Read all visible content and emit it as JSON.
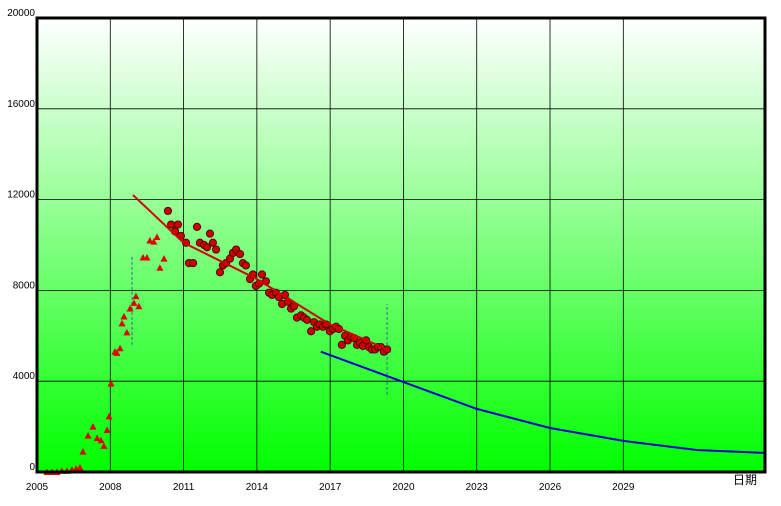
{
  "chart_data": {
    "type": "scatter",
    "xlabel": "日期",
    "xlim": [
      2005,
      2034.8
    ],
    "ylim": [
      0,
      20000
    ],
    "xticks": [
      2005,
      2008,
      2011,
      2014,
      2017,
      2020,
      2023,
      2026,
      2029
    ],
    "yticks": [
      0,
      4000,
      8000,
      12000,
      16000,
      20000
    ],
    "grid": true,
    "background": [
      "#ffffff",
      "#00ff00"
    ],
    "series": [
      {
        "marker": "triangle",
        "color": "#e00000",
        "x": [
          2005.41,
          2005.61,
          2005.82,
          2006.02,
          2006.23,
          2006.43,
          2006.6,
          2006.76,
          2006.88,
          2007.09,
          2007.29,
          2007.46,
          2007.62,
          2007.74,
          2007.87,
          2007.95,
          2008.03,
          2008.19,
          2008.27,
          2008.4,
          2008.48,
          2008.56,
          2008.68,
          2008.81,
          2008.97,
          2009.05,
          2009.17,
          2009.34,
          2009.5,
          2009.62,
          2009.78,
          2009.91,
          2010.03,
          2010.2
        ],
        "values": [
          0,
          0,
          0,
          50,
          50,
          100,
          150,
          200,
          900,
          1600,
          2000,
          1500,
          1400,
          1150,
          1850,
          2450,
          3900,
          5300,
          5250,
          5450,
          6550,
          6850,
          6150,
          7200,
          7450,
          7750,
          7300,
          9450,
          9450,
          10200,
          10150,
          10350,
          9000,
          9400
        ]
      },
      {
        "marker": "circle",
        "color": "#cc0000",
        "x": [
          2010.36,
          2010.49,
          2010.65,
          2010.77,
          2010.89,
          2011.1,
          2011.22,
          2011.39,
          2011.55,
          2011.67,
          2011.84,
          2011.96,
          2012.08,
          2012.2,
          2012.33,
          2012.49,
          2012.61,
          2012.74,
          2012.9,
          2013.02,
          2013.15,
          2013.31,
          2013.43,
          2013.55,
          2013.72,
          2013.84,
          2013.96,
          2014.09,
          2014.21,
          2014.37,
          2014.5,
          2014.62,
          2014.78,
          2014.91,
          2015.03,
          2015.15,
          2015.27,
          2015.4,
          2015.52,
          2015.64,
          2015.81,
          2015.93,
          2016.05,
          2016.22,
          2016.34,
          2016.46,
          2016.58,
          2016.71,
          2016.83,
          2016.99,
          2017.12,
          2017.24,
          2017.36,
          2017.48,
          2017.61,
          2017.73,
          2017.85,
          2017.98,
          2018.1,
          2018.22,
          2018.34,
          2018.47,
          2018.59,
          2018.71,
          2018.84,
          2018.96,
          2019.08,
          2019.2,
          2019.33
        ],
        "values": [
          11500,
          10900,
          10600,
          10900,
          10400,
          10100,
          9200,
          9200,
          10800,
          10100,
          10000,
          9900,
          10500,
          10100,
          9800,
          8800,
          9100,
          9200,
          9400,
          9650,
          9800,
          9600,
          9200,
          9100,
          8500,
          8700,
          8200,
          8300,
          8700,
          8400,
          7900,
          7800,
          7900,
          7700,
          7400,
          7800,
          7500,
          7200,
          7300,
          6800,
          6900,
          6800,
          6700,
          6200,
          6600,
          6400,
          6500,
          6400,
          6500,
          6200,
          6300,
          6400,
          6300,
          5600,
          6000,
          5800,
          5950,
          5900,
          5600,
          5700,
          5550,
          5800,
          5500,
          5400,
          5400,
          5500,
          5500,
          5300,
          5400
        ]
      },
      {
        "marker": "line",
        "color": "#d00000",
        "x": [
          2008.93,
          2011,
          2014,
          2017,
          2019.33
        ],
        "values": [
          12200,
          10100,
          8500,
          6500,
          5400
        ]
      },
      {
        "marker": "line",
        "color": "#0000cc",
        "x": [
          2016.62,
          2020,
          2023,
          2026,
          2029,
          2032,
          2034.8
        ],
        "values": [
          5300,
          3960,
          2780,
          1940,
          1370,
          970,
          840
        ]
      }
    ],
    "vlines": [
      {
        "x": 2008.89,
        "ylim": [
          5600,
          9500
        ],
        "color": "#336699"
      },
      {
        "x": 2019.33,
        "ylim": [
          3400,
          7400
        ],
        "color": "#336699"
      }
    ]
  }
}
